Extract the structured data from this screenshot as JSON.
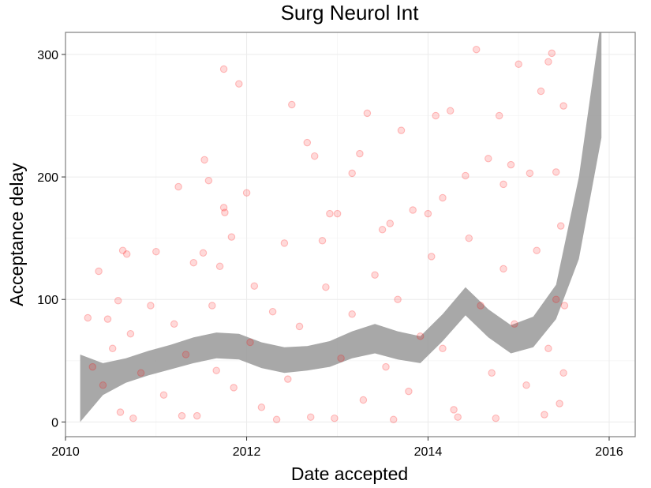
{
  "chart_data": {
    "type": "scatter",
    "title": "Surg Neurol Int",
    "xlabel": "Date accepted",
    "ylabel": "Acceptance delay",
    "xlim": [
      "2010-01-01",
      "2016-04-15"
    ],
    "ylim": [
      -12,
      318
    ],
    "x_ticks": [
      {
        "value": "2010-01-01",
        "label": "2010"
      },
      {
        "value": "2012-01-01",
        "label": "2012"
      },
      {
        "value": "2014-01-01",
        "label": "2014"
      },
      {
        "value": "2016-01-01",
        "label": "2016"
      }
    ],
    "y_ticks": [
      {
        "value": 0,
        "label": "0"
      },
      {
        "value": 100,
        "label": "100"
      },
      {
        "value": 200,
        "label": "200"
      },
      {
        "value": 300,
        "label": "300"
      }
    ],
    "grid": true,
    "legend": "none",
    "colors": {
      "points": "#ff0000",
      "band": "#999999",
      "grid": "#ebebeb",
      "border": "#7f7f7f"
    },
    "point_alpha": 0.15,
    "series": [
      {
        "type": "points",
        "points": [
          [
            "2010-04-01",
            85
          ],
          [
            "2010-05-15",
            123
          ],
          [
            "2010-06-20",
            84
          ],
          [
            "2010-08-01",
            99
          ],
          [
            "2010-08-20",
            140
          ],
          [
            "2010-09-05",
            137
          ],
          [
            "2011-01-01",
            139
          ],
          [
            "2011-04-01",
            192
          ],
          [
            "2011-06-01",
            130
          ],
          [
            "2011-07-10",
            138
          ],
          [
            "2011-07-15",
            214
          ],
          [
            "2011-08-01",
            197
          ],
          [
            "2011-09-15",
            127
          ],
          [
            "2011-10-01",
            288
          ],
          [
            "2011-10-01",
            175
          ],
          [
            "2011-10-05",
            171
          ],
          [
            "2011-11-01",
            151
          ],
          [
            "2011-12-01",
            276
          ],
          [
            "2012-01-01",
            187
          ],
          [
            "2012-02-01",
            111
          ],
          [
            "2012-06-01",
            146
          ],
          [
            "2012-07-01",
            259
          ],
          [
            "2012-09-01",
            228
          ],
          [
            "2012-10-01",
            217
          ],
          [
            "2012-11-01",
            148
          ],
          [
            "2012-12-01",
            170
          ],
          [
            "2013-01-01",
            170
          ],
          [
            "2013-03-01",
            203
          ],
          [
            "2013-04-01",
            219
          ],
          [
            "2013-05-01",
            252
          ],
          [
            "2013-07-01",
            157
          ],
          [
            "2013-08-01",
            162
          ],
          [
            "2013-09-15",
            238
          ],
          [
            "2013-11-01",
            173
          ],
          [
            "2014-01-01",
            170
          ],
          [
            "2014-02-01",
            250
          ],
          [
            "2014-03-01",
            183
          ],
          [
            "2014-04-01",
            254
          ],
          [
            "2014-06-01",
            201
          ],
          [
            "2014-07-15",
            304
          ],
          [
            "2014-09-01",
            215
          ],
          [
            "2014-10-15",
            250
          ],
          [
            "2014-11-01",
            194
          ],
          [
            "2014-12-01",
            210
          ],
          [
            "2015-01-01",
            292
          ],
          [
            "2015-02-15",
            203
          ],
          [
            "2015-04-01",
            270
          ],
          [
            "2015-05-01",
            294
          ],
          [
            "2015-05-15",
            301
          ],
          [
            "2015-07-01",
            258
          ],
          [
            "2015-06-01",
            204
          ],
          [
            "2015-06-20",
            160
          ],
          [
            "2010-04-20",
            45
          ],
          [
            "2010-06-01",
            30
          ],
          [
            "2010-07-10",
            60
          ],
          [
            "2010-08-10",
            8
          ],
          [
            "2010-09-20",
            72
          ],
          [
            "2010-11-01",
            40
          ],
          [
            "2010-12-10",
            95
          ],
          [
            "2011-02-01",
            22
          ],
          [
            "2011-03-15",
            80
          ],
          [
            "2011-05-01",
            55
          ],
          [
            "2011-06-15",
            5
          ],
          [
            "2011-08-15",
            95
          ],
          [
            "2011-09-01",
            42
          ],
          [
            "2011-11-10",
            28
          ],
          [
            "2012-01-15",
            65
          ],
          [
            "2012-03-01",
            12
          ],
          [
            "2012-04-15",
            90
          ],
          [
            "2012-06-15",
            35
          ],
          [
            "2012-08-01",
            78
          ],
          [
            "2012-09-15",
            4
          ],
          [
            "2012-11-15",
            110
          ],
          [
            "2013-01-15",
            52
          ],
          [
            "2013-03-01",
            88
          ],
          [
            "2013-04-15",
            18
          ],
          [
            "2013-06-01",
            120
          ],
          [
            "2013-07-15",
            45
          ],
          [
            "2013-09-01",
            100
          ],
          [
            "2013-10-15",
            25
          ],
          [
            "2013-12-01",
            70
          ],
          [
            "2014-01-15",
            135
          ],
          [
            "2014-03-01",
            60
          ],
          [
            "2014-04-15",
            10
          ],
          [
            "2014-06-15",
            150
          ],
          [
            "2014-08-01",
            95
          ],
          [
            "2014-09-15",
            40
          ],
          [
            "2014-11-01",
            125
          ],
          [
            "2014-12-15",
            80
          ],
          [
            "2015-02-01",
            30
          ],
          [
            "2015-03-15",
            140
          ],
          [
            "2015-05-01",
            60
          ],
          [
            "2015-06-01",
            100
          ],
          [
            "2015-06-15",
            15
          ],
          [
            "2015-07-01",
            40
          ],
          [
            "2015-07-05",
            95
          ],
          [
            "2010-10-01",
            3
          ],
          [
            "2011-04-15",
            5
          ],
          [
            "2012-05-01",
            2
          ],
          [
            "2012-12-20",
            3
          ],
          [
            "2013-08-15",
            2
          ],
          [
            "2014-05-01",
            4
          ],
          [
            "2014-10-01",
            3
          ],
          [
            "2015-04-15",
            6
          ]
        ]
      },
      {
        "type": "band",
        "name": "",
        "band": [
          {
            "x": "2010-03-01",
            "lower": 0,
            "upper": 55
          },
          {
            "x": "2010-06-01",
            "lower": 22,
            "upper": 48
          },
          {
            "x": "2010-09-01",
            "lower": 32,
            "upper": 52
          },
          {
            "x": "2010-12-01",
            "lower": 38,
            "upper": 58
          },
          {
            "x": "2011-03-01",
            "lower": 43,
            "upper": 63
          },
          {
            "x": "2011-06-01",
            "lower": 48,
            "upper": 69
          },
          {
            "x": "2011-09-01",
            "lower": 52,
            "upper": 73
          },
          {
            "x": "2011-12-01",
            "lower": 51,
            "upper": 72
          },
          {
            "x": "2012-03-01",
            "lower": 44,
            "upper": 65
          },
          {
            "x": "2012-06-01",
            "lower": 40,
            "upper": 61
          },
          {
            "x": "2012-09-01",
            "lower": 42,
            "upper": 62
          },
          {
            "x": "2012-12-01",
            "lower": 45,
            "upper": 66
          },
          {
            "x": "2013-03-01",
            "lower": 52,
            "upper": 74
          },
          {
            "x": "2013-06-01",
            "lower": 56,
            "upper": 80
          },
          {
            "x": "2013-09-01",
            "lower": 51,
            "upper": 74
          },
          {
            "x": "2013-12-01",
            "lower": 48,
            "upper": 70
          },
          {
            "x": "2014-03-01",
            "lower": 66,
            "upper": 88
          },
          {
            "x": "2014-06-01",
            "lower": 87,
            "upper": 110
          },
          {
            "x": "2014-09-01",
            "lower": 69,
            "upper": 92
          },
          {
            "x": "2014-12-01",
            "lower": 56,
            "upper": 79
          },
          {
            "x": "2015-03-01",
            "lower": 61,
            "upper": 86
          },
          {
            "x": "2015-06-01",
            "lower": 84,
            "upper": 112
          },
          {
            "x": "2015-09-01",
            "lower": 133,
            "upper": 200
          },
          {
            "x": "2015-12-01",
            "lower": 232,
            "upper": 330
          }
        ]
      }
    ]
  }
}
